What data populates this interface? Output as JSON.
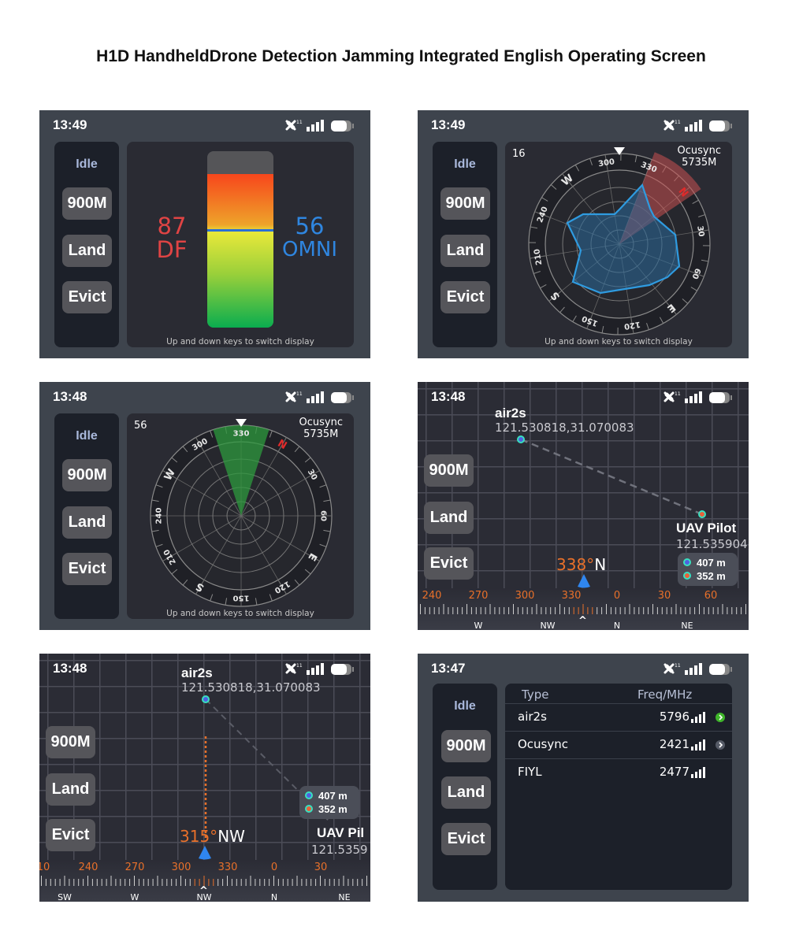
{
  "title": "H1D HandheldDrone Detection Jamming Integrated English Operating Screen",
  "sidebar": {
    "status": "Idle",
    "buttons": [
      "900M",
      "Land",
      "Evict"
    ]
  },
  "footer": "Up and down keys to switch display",
  "status_icons": [
    "satellite-icon",
    "signal-icon",
    "battery-icon"
  ],
  "panel_signal": {
    "time": "13:49",
    "df_value": "87",
    "df_label": "DF",
    "omni_value": "56",
    "omni_label": "OMNI",
    "colors": {
      "df": "#e04444",
      "omni": "#2f86e0"
    }
  },
  "panel_radar1": {
    "time": "13:49",
    "count": "16",
    "protocol": "Ocusync",
    "freq": "5735M",
    "heading_deg": 309,
    "sector_color": "#c85050"
  },
  "panel_radar2": {
    "time": "13:48",
    "count": "56",
    "protocol": "Ocusync",
    "freq": "5735M",
    "heading_deg": 330,
    "sector_color": "#2e9a3e"
  },
  "compass_labels": [
    "N",
    "30",
    "60",
    "E",
    "120",
    "150",
    "S",
    "210",
    "240",
    "W",
    "300",
    "330"
  ],
  "panel_map1": {
    "time": "13:48",
    "drone_name": "air2s",
    "drone_coord": "121.530818,31.070083",
    "pilot_name": "UAV Pilot",
    "pilot_coord": "121.535904,",
    "drone_dist": "407 m",
    "pilot_dist": "352 m",
    "heading_value": "338°",
    "heading_dir": "N",
    "scale_labels": [
      "240",
      "270",
      "300",
      "330",
      "0",
      "30",
      "60"
    ],
    "dir_labels": [
      "W",
      "NW",
      "N",
      "NE"
    ]
  },
  "panel_map2": {
    "time": "13:48",
    "drone_name": "air2s",
    "drone_coord": "121.530818,31.070083",
    "pilot_name": "UAV Pil",
    "pilot_coord": "121.5359",
    "drone_dist": "407 m",
    "pilot_dist": "352 m",
    "heading_value": "315°",
    "heading_dir": "NW",
    "scale_labels": [
      "10",
      "240",
      "270",
      "300",
      "330",
      "0",
      "30"
    ],
    "dir_labels": [
      "SW",
      "W",
      "NW",
      "N",
      "NE"
    ]
  },
  "panel_list": {
    "time": "13:47",
    "headers": {
      "type": "Type",
      "freq": "Freq/MHz"
    },
    "rows": [
      {
        "type": "air2s",
        "freq": "5796",
        "arrow": "green"
      },
      {
        "type": "Ocusync",
        "freq": "2421",
        "arrow": "gray"
      },
      {
        "type": "FIYL",
        "freq": "2477",
        "arrow": ""
      }
    ]
  }
}
